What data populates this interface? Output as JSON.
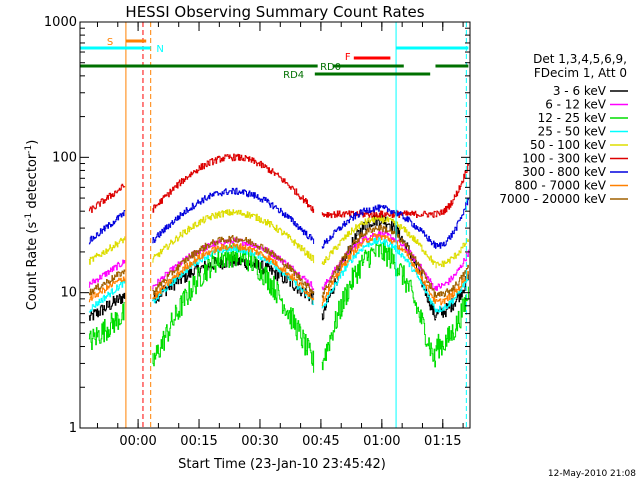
{
  "chart_data": {
    "type": "line",
    "title": "HESSI Observing Summary Count Rates",
    "xlabel": "Start Time (23-Jan-10 23:45:42)",
    "ylabel": "Count Rate (s",
    "ylabel_sup": "-1",
    "ylabel_mid": " detector",
    "ylabel_end": ")",
    "yscale": "log",
    "ylim": [
      1,
      1000
    ],
    "xlim_minutes": [
      0,
      96
    ],
    "x_ticks": [
      {
        "label": "00:00",
        "minutes": 14.3
      },
      {
        "label": "00:15",
        "minutes": 29.3
      },
      {
        "label": "00:30",
        "minutes": 44.3
      },
      {
        "label": "00:45",
        "minutes": 59.3
      },
      {
        "label": "01:00",
        "minutes": 74.3
      },
      {
        "label": "01:15",
        "minutes": 89.3
      }
    ],
    "y_ticks": [
      {
        "label": "1",
        "value": 1
      },
      {
        "label": "10",
        "value": 10
      },
      {
        "label": "100",
        "value": 100
      },
      {
        "label": "1000",
        "value": 1000
      }
    ],
    "legend_header": [
      "Det 1,3,4,5,6,9,",
      "FDecim 1, Att 0"
    ],
    "legend_position": "right",
    "series": [
      {
        "name": "3 - 6 keV",
        "color": "#000000",
        "before": [
          6.5,
          9.5
        ],
        "pass1": [
          9.0,
          17.0
        ],
        "pass2": [
          6.5,
          35.0
        ],
        "after": [
          7.0,
          13.0
        ]
      },
      {
        "name": "6 - 12 keV",
        "color": "#ff00ff",
        "before": [
          11.5,
          17.0
        ],
        "pass1": [
          11.0,
          24.0
        ],
        "pass2": [
          10.5,
          27.0
        ],
        "after": [
          11.0,
          20.0
        ]
      },
      {
        "name": "12 - 25 keV",
        "color": "#00dd00",
        "before": [
          4.3,
          7.0
        ],
        "pass1": [
          3.0,
          19.0
        ],
        "pass2": [
          3.0,
          20.0
        ],
        "after": [
          4.0,
          10.0
        ]
      },
      {
        "name": "25 - 50 keV",
        "color": "#00ffff",
        "before": [
          7.5,
          12.0
        ],
        "pass1": [
          8.5,
          21.0
        ],
        "pass2": [
          7.5,
          24.0
        ],
        "after": [
          7.5,
          13.5
        ]
      },
      {
        "name": "50 - 100 keV",
        "color": "#dddd00",
        "before": [
          17.0,
          25.0
        ],
        "pass1": [
          17.5,
          39.0
        ],
        "pass2": [
          16.0,
          35.0
        ],
        "after": [
          16.0,
          25.0
        ]
      },
      {
        "name": "100 - 300 keV",
        "color": "#dd0000",
        "before": [
          40.0,
          62.0
        ],
        "pass1": [
          41.0,
          100.0
        ],
        "pass2": [
          38.0,
          38.0
        ],
        "after": [
          38.0,
          90.0
        ]
      },
      {
        "name": "300 - 800 keV",
        "color": "#0000dd",
        "before": [
          24.0,
          39.0
        ],
        "pass1": [
          24.0,
          56.0
        ],
        "pass2": [
          22.0,
          42.0
        ],
        "after": [
          22.0,
          50.0
        ]
      },
      {
        "name": "800 - 7000 keV",
        "color": "#ff8000",
        "before": [
          9.0,
          13.0
        ],
        "pass1": [
          9.0,
          22.0
        ],
        "pass2": [
          8.5,
          26.0
        ],
        "after": [
          8.5,
          14.0
        ]
      },
      {
        "name": "7000 - 20000 keV",
        "color": "#a06000",
        "before": [
          10.0,
          14.5
        ],
        "pass1": [
          10.0,
          25.0
        ],
        "pass2": [
          9.5,
          30.0
        ],
        "after": [
          9.5,
          15.5
        ]
      }
    ],
    "flag_labels": {
      "s": "S",
      "n": "N",
      "f": "F",
      "rd0": "RD0",
      "rd4": "RD4"
    },
    "flag_colors": {
      "s": "#ff8000",
      "n": "#00ffff",
      "f": "#ff0000",
      "rd0": "#007000",
      "rd4": "#007000"
    },
    "footer": "12-May-2010 21:08"
  }
}
